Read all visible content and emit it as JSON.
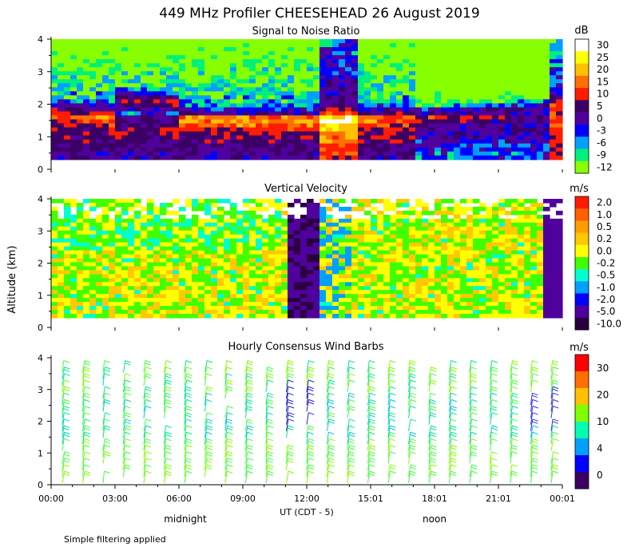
{
  "title": "449 MHz Profiler CHEESEHEAD 26 August 2019",
  "ylabel": "Altitude (km)",
  "footnote": "Simple filtering applied",
  "time_axis": {
    "ticks": [
      "00:00",
      "03:00",
      "06:00",
      "09:00",
      "12:00",
      "15:01",
      "18:01",
      "21:01",
      "00:01"
    ],
    "label": "UT  (CDT - 5)",
    "markers": [
      "midnight",
      "noon"
    ]
  },
  "chart_data": [
    {
      "type": "heatmap",
      "title": "Signal to Noise Ratio",
      "ylim": [
        0,
        4
      ],
      "yticks": [
        "0",
        "1",
        "2",
        "3",
        "4"
      ],
      "colorbar": {
        "unit": "dB",
        "labels": [
          "30",
          "25",
          "20",
          "15",
          "10",
          "5",
          "0",
          "-3",
          "-6",
          "-9",
          "-12"
        ],
        "colors": [
          "#ffffff",
          "#ffff00",
          "#ffc000",
          "#ff7000",
          "#ff1c00",
          "#3c0064",
          "#50009c",
          "#0000ff",
          "#00a0ff",
          "#00f07c",
          "#88ff00"
        ]
      }
    },
    {
      "type": "heatmap",
      "title": "Vertical Velocity",
      "ylim": [
        0,
        4
      ],
      "yticks": [
        "0",
        "1",
        "2",
        "3",
        "4"
      ],
      "colorbar": {
        "unit": "m/s",
        "labels": [
          "2.0",
          "1.0",
          "0.5",
          "0.2",
          "0.0",
          "-0.2",
          "-0.5",
          "-1.0",
          "-2.0",
          "-5.0",
          "-10.0"
        ],
        "colors": [
          "#ff1c00",
          "#ff6000",
          "#ff9c00",
          "#ffc800",
          "#ffff00",
          "#40ff00",
          "#00ffd0",
          "#00a0ff",
          "#0000ff",
          "#50009c",
          "#2a0040"
        ]
      }
    },
    {
      "type": "scatter",
      "title": "Hourly Consensus Wind Barbs",
      "ylim": [
        0,
        4
      ],
      "yticks": [
        "0",
        "1",
        "2",
        "3",
        "4"
      ],
      "colorbar": {
        "unit": "m/s",
        "labels": [
          "30",
          "20",
          "10",
          "4",
          "0"
        ],
        "colors": [
          "#ff0000",
          "#ff7000",
          "#ffc000",
          "#80ff00",
          "#00ffb0",
          "#00a0ff",
          "#0000ff",
          "#3c0064"
        ]
      }
    }
  ]
}
